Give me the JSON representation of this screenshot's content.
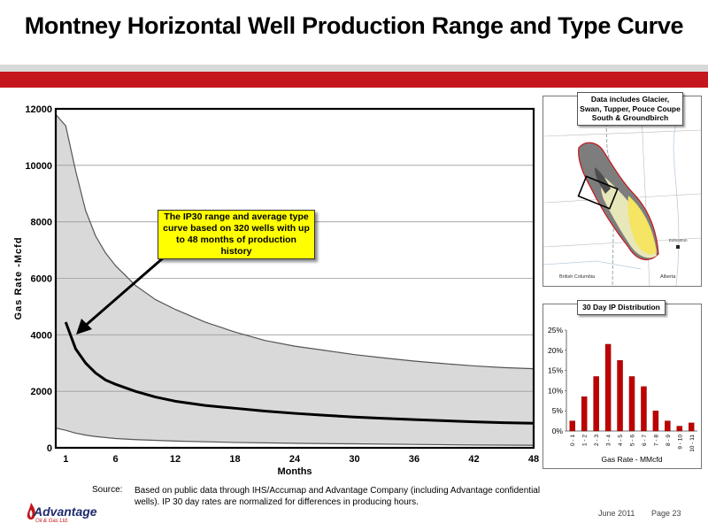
{
  "header": {
    "title": "Montney Horizontal Well Production Range and Type Curve"
  },
  "colors": {
    "accent_red": "#c4161c",
    "band_grey": "#d9d9d9",
    "range_fill": "#d9d9d9",
    "callout_yellow": "#ffff00",
    "bar_red": "#c00000"
  },
  "chart_data": [
    {
      "type": "area",
      "xlabel": "Months",
      "ylabel": "Gas Rate -Mcfd",
      "xlim": [
        1,
        48
      ],
      "ylim": [
        0,
        12000
      ],
      "x_ticks": [
        "1",
        "6",
        "12",
        "18",
        "24",
        "30",
        "36",
        "42",
        "48"
      ],
      "y_ticks": [
        "0",
        "2000",
        "4000",
        "6000",
        "8000",
        "10000",
        "12000"
      ],
      "grid": "horizontal",
      "series": [
        {
          "role": "upper_range",
          "x": [
            0,
            1,
            2,
            3,
            4,
            5,
            6,
            8,
            10,
            12,
            15,
            18,
            21,
            24,
            27,
            30,
            33,
            36,
            39,
            42,
            45,
            48
          ],
          "y": [
            11800,
            11400,
            9800,
            8400,
            7500,
            6900,
            6450,
            5750,
            5250,
            4900,
            4450,
            4100,
            3800,
            3600,
            3450,
            3300,
            3180,
            3070,
            2980,
            2900,
            2840,
            2800
          ]
        },
        {
          "role": "type_curve",
          "x": [
            1,
            2,
            3,
            4,
            5,
            6,
            8,
            10,
            12,
            15,
            18,
            21,
            24,
            27,
            30,
            33,
            36,
            39,
            42,
            45,
            48
          ],
          "y": [
            4450,
            3500,
            3000,
            2650,
            2400,
            2250,
            2000,
            1800,
            1650,
            1500,
            1400,
            1300,
            1220,
            1150,
            1090,
            1040,
            1000,
            960,
            920,
            890,
            870
          ]
        },
        {
          "role": "lower_range",
          "x": [
            0,
            1,
            2,
            3,
            4,
            6,
            8,
            12,
            18,
            24,
            30,
            36,
            42,
            48
          ],
          "y": [
            700,
            620,
            520,
            450,
            400,
            330,
            290,
            240,
            190,
            160,
            140,
            120,
            100,
            90
          ]
        }
      ],
      "annotation": "The IP30 range and average type curve  based on 320 wells with up to 48 months of production history"
    },
    {
      "type": "bar",
      "title": "30 Day IP Distribution",
      "xlabel": "Gas Rate - MMcfd",
      "categories": [
        "0 - 1",
        "1 - 2",
        "2 - 3",
        "3 - 4",
        "4 - 5",
        "5 - 6",
        "6 - 7",
        "7 - 8",
        "8 - 9",
        "9 - 10",
        "10 - 11"
      ],
      "values": [
        2.5,
        8.5,
        13.5,
        21.5,
        17.5,
        13.5,
        11.0,
        5.0,
        2.5,
        1.2,
        2.0
      ],
      "y_ticks": [
        "0%",
        "5%",
        "10%",
        "15%",
        "20%",
        "25%"
      ],
      "ylim": [
        0,
        25
      ]
    }
  ],
  "map": {
    "label": "Data includes Glacier, Swan, Tupper, Pouce Coupe South & Groundbirch",
    "place_bc": "British Columbia",
    "place_ab": "Alberta",
    "place_city": "Edmonton"
  },
  "footer": {
    "source_key": "Source:",
    "source_text": "Based on public data through IHS/Accumap and Advantage Company (including Advantage confidential wells).  IP 30 day rates are normalized for differences in producing hours.",
    "date": "June 2011",
    "page": "Page 23",
    "logo_main": "Advantage",
    "logo_sub": "Oil & Gas Ltd."
  }
}
